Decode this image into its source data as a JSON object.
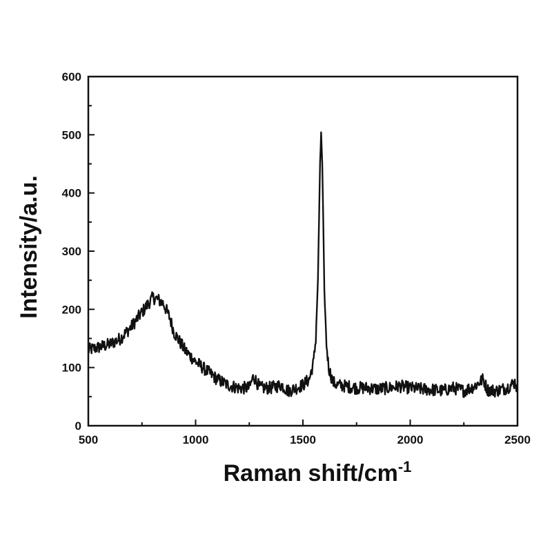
{
  "chart_data": {
    "type": "line",
    "xlabel": "Raman shift/cm",
    "xlabel_superscript": "-1",
    "ylabel": "Intensity/a.u.",
    "xlim": [
      500,
      2500
    ],
    "ylim": [
      0,
      600
    ],
    "x_ticks": [
      500,
      1000,
      1500,
      2000,
      2500
    ],
    "x_tick_labels": [
      "500",
      "1000",
      "1500",
      "2000",
      "2500"
    ],
    "y_ticks": [
      0,
      100,
      200,
      300,
      400,
      500,
      600
    ],
    "y_tick_labels": [
      "0",
      "100",
      "200",
      "300",
      "400",
      "500",
      "600"
    ],
    "grid": false,
    "legend": "none",
    "line_color": "#111111",
    "series": [
      {
        "x": [
          500,
          550,
          600,
          650,
          700,
          750,
          780,
          800,
          820,
          850,
          880,
          900,
          950,
          1000,
          1050,
          1100,
          1150,
          1200,
          1250,
          1270,
          1300,
          1350,
          1400,
          1430,
          1450,
          1500,
          1530,
          1550,
          1560,
          1570,
          1575,
          1580,
          1585,
          1590,
          1595,
          1600,
          1610,
          1620,
          1640,
          1660,
          1700,
          1750,
          1800,
          1850,
          1900,
          1950,
          2000,
          2050,
          2100,
          2150,
          2200,
          2250,
          2300,
          2340,
          2360,
          2400,
          2450,
          2490,
          2500
        ],
        "y": [
          130,
          135,
          140,
          150,
          170,
          195,
          210,
          220,
          218,
          210,
          185,
          160,
          130,
          110,
          95,
          80,
          70,
          65,
          65,
          85,
          65,
          65,
          70,
          60,
          62,
          70,
          80,
          110,
          150,
          250,
          350,
          450,
          505,
          450,
          350,
          230,
          140,
          100,
          75,
          70,
          68,
          65,
          65,
          63,
          65,
          68,
          65,
          63,
          62,
          60,
          65,
          60,
          68,
          80,
          62,
          60,
          65,
          75,
          60
        ]
      }
    ]
  }
}
